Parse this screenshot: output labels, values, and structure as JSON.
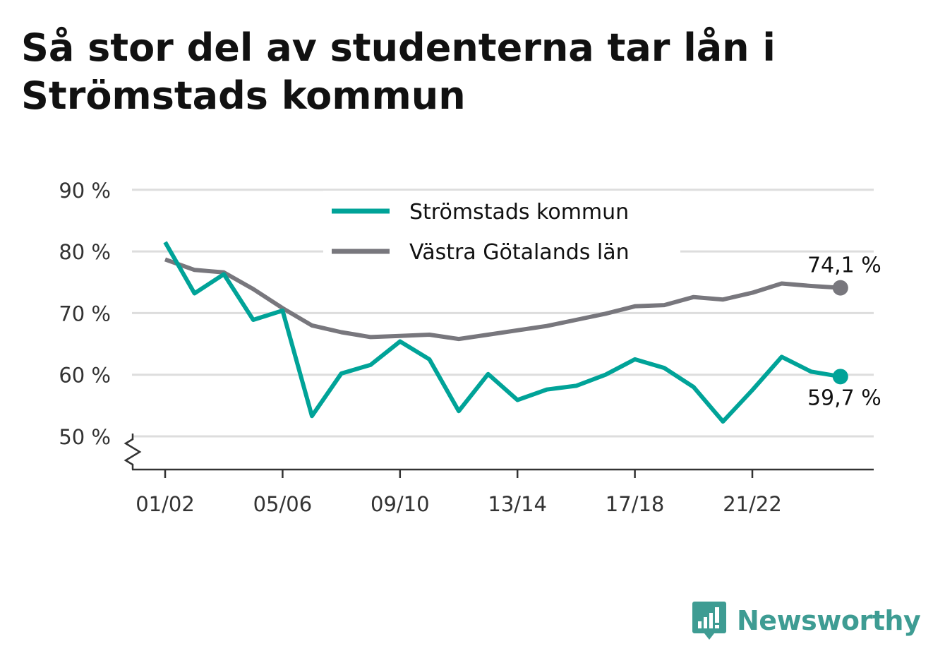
{
  "title": "Så stor del av studenterna tar lån i Strömstads kommun",
  "brand": "Newsworthy",
  "colors": {
    "primary": "#00a398",
    "secondary": "#78777d",
    "grid": "#dddddd",
    "axis": "#333333",
    "text": "#111111",
    "brand": "#3e9c93"
  },
  "chart_data": {
    "type": "line",
    "title": "Så stor del av studenterna tar lån i Strömstads kommun",
    "x": [
      "01/02",
      "02/03",
      "03/04",
      "04/05",
      "05/06",
      "06/07",
      "07/08",
      "08/09",
      "09/10",
      "10/11",
      "11/12",
      "12/13",
      "13/14",
      "14/15",
      "15/16",
      "16/17",
      "17/18",
      "18/19",
      "19/20",
      "20/21",
      "21/22",
      "22/23",
      "23/24",
      "24/25"
    ],
    "x_tick_labels": [
      "01/02",
      "05/06",
      "09/10",
      "13/14",
      "17/18",
      "21/22"
    ],
    "y_ticks": [
      50,
      60,
      70,
      80,
      90
    ],
    "y_tick_labels": [
      "50 %",
      "60 %",
      "70 %",
      "80 %",
      "90 %"
    ],
    "ylim": [
      45,
      90
    ],
    "y_axis_break": true,
    "grid": true,
    "legend_position": "top",
    "series": [
      {
        "name": "Strömstads kommun",
        "color": "#00a398",
        "values": [
          81.5,
          73.2,
          76.3,
          68.9,
          70.4,
          53.3,
          60.2,
          61.6,
          65.4,
          62.5,
          54.1,
          60.1,
          55.9,
          57.6,
          58.2,
          60.0,
          62.5,
          61.1,
          58.0,
          52.4,
          57.5,
          62.9,
          60.5,
          59.7
        ],
        "end_label": "59,7 %"
      },
      {
        "name": "Västra Götalands län",
        "color": "#78777d",
        "values": [
          78.7,
          77.0,
          76.6,
          73.9,
          70.8,
          68.0,
          66.9,
          66.1,
          66.3,
          66.5,
          65.8,
          66.5,
          67.2,
          67.9,
          68.9,
          69.9,
          71.1,
          71.3,
          72.6,
          72.2,
          73.3,
          74.8,
          74.4,
          74.1
        ],
        "end_label": "74,1 %"
      }
    ]
  }
}
